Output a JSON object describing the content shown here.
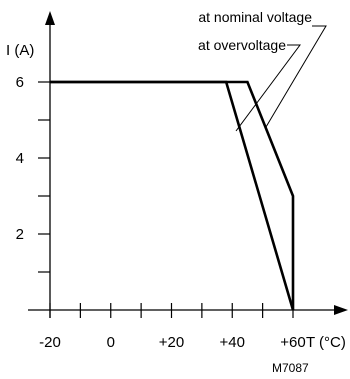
{
  "chart_data": {
    "type": "line",
    "title": "",
    "xlabel": "T (°C)",
    "ylabel": "I (A)",
    "xlim": [
      -20,
      60
    ],
    "ylim": [
      0,
      7
    ],
    "x_ticks": [
      -20,
      -10,
      0,
      10,
      20,
      30,
      40,
      50,
      60
    ],
    "x_tick_labels": [
      {
        "value": -20,
        "label": "-20"
      },
      {
        "value": 0,
        "label": "0"
      },
      {
        "value": 20,
        "label": "+20"
      },
      {
        "value": 40,
        "label": "+40"
      },
      {
        "value": 60,
        "label": "+60"
      }
    ],
    "y_ticks": [
      1,
      2,
      3,
      4,
      5,
      6
    ],
    "y_tick_labels": [
      {
        "value": 2,
        "label": "2"
      },
      {
        "value": 4,
        "label": "4"
      },
      {
        "value": 6,
        "label": "6"
      }
    ],
    "grid": false,
    "series": [
      {
        "name": "at nominal voltage",
        "x": [
          -20,
          45,
          60,
          60
        ],
        "y": [
          6,
          6,
          3,
          0
        ]
      },
      {
        "name": "at overvoltage",
        "x": [
          -20,
          38,
          60
        ],
        "y": [
          6,
          6,
          0
        ]
      }
    ],
    "annotations": [
      {
        "series": "at nominal voltage",
        "text": "at nominal voltage"
      },
      {
        "series": "at overvoltage",
        "text": "at overvoltage"
      }
    ],
    "figure_id": "M7087"
  }
}
